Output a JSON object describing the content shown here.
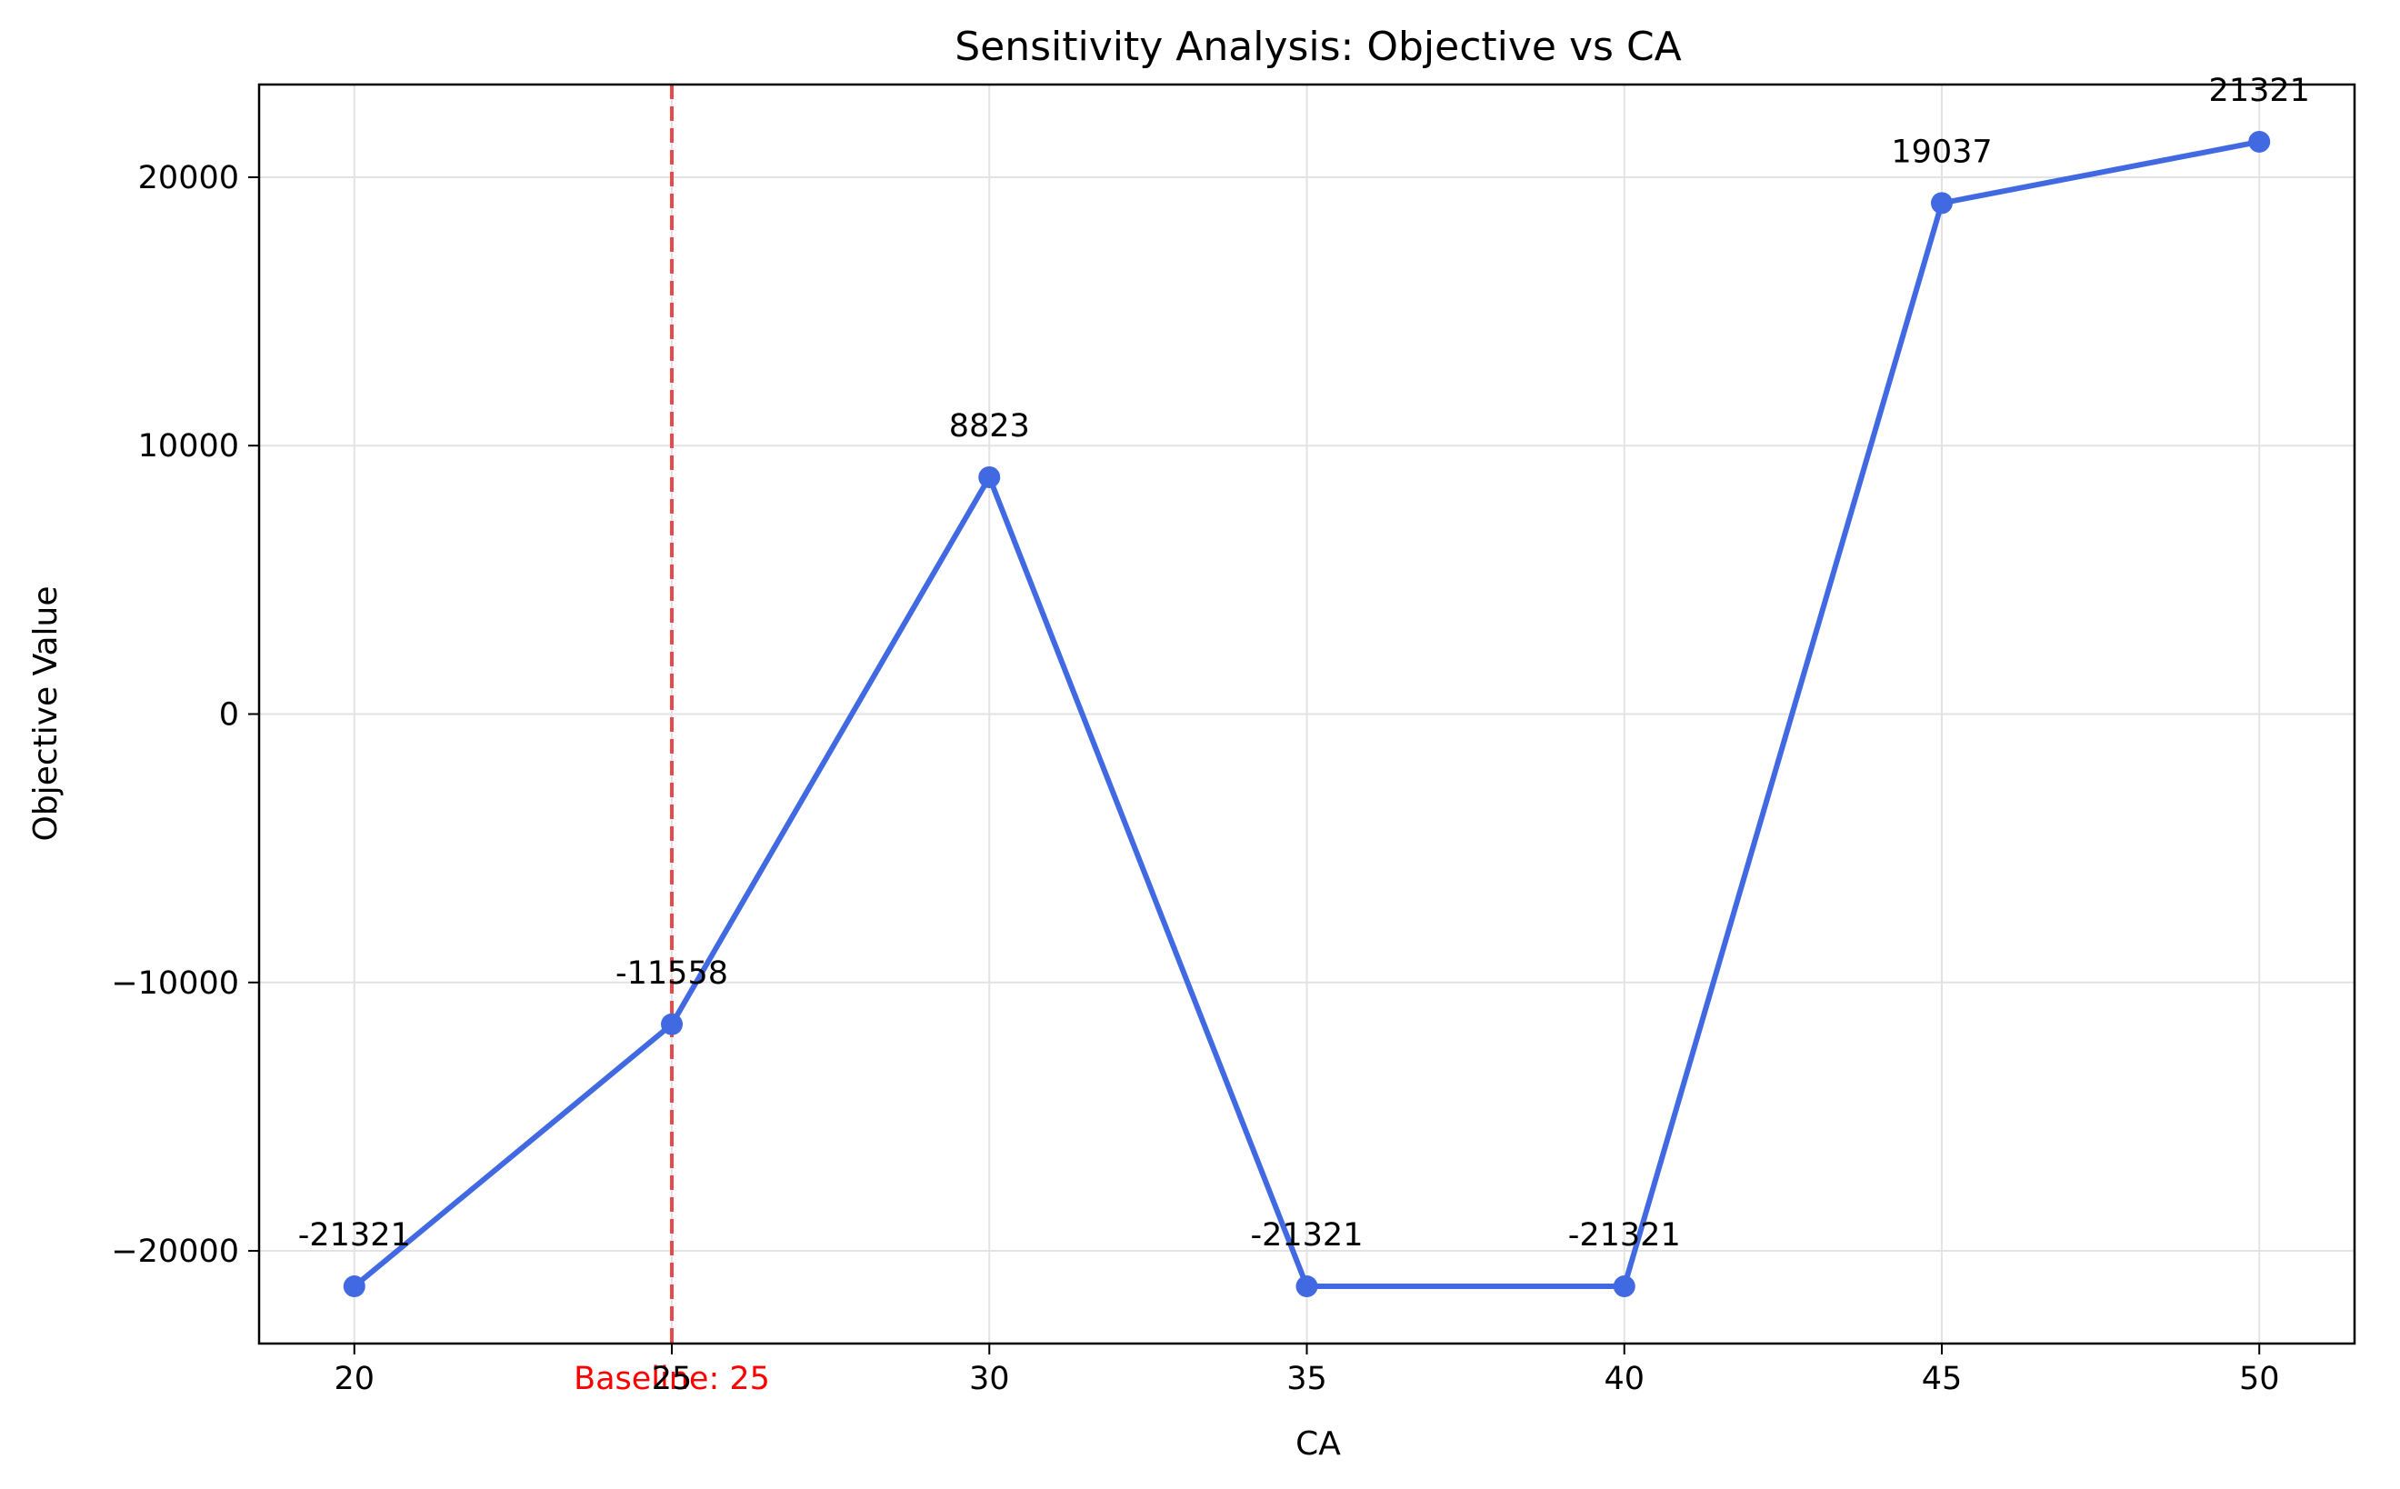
{
  "chart_data": {
    "type": "line",
    "title": "Sensitivity Analysis: Objective vs CA",
    "xlabel": "CA",
    "ylabel": "Objective Value",
    "x": [
      20,
      25,
      30,
      35,
      40,
      45,
      50
    ],
    "series": [
      {
        "values": [
          -21321,
          -11558,
          8823,
          -21321,
          -21321,
          19037,
          21321
        ],
        "color": "#4169e1",
        "marker": "circle"
      }
    ],
    "data_labels": [
      "-21321",
      "-11558",
      "8823",
      "-21321",
      "-21321",
      "19037",
      "21321"
    ],
    "xticks": [
      20,
      25,
      30,
      35,
      40,
      45,
      50
    ],
    "xtick_labels": [
      "20",
      "25",
      "30",
      "35",
      "40",
      "45",
      "50"
    ],
    "yticks": [
      -20000,
      -10000,
      0,
      10000,
      20000
    ],
    "ytick_labels": [
      "−20000",
      "−10000",
      "0",
      "10000",
      "20000"
    ],
    "xlim": [
      18.5,
      51.5
    ],
    "ylim": [
      -23453,
      23453
    ],
    "grid": true,
    "baseline": {
      "x": 25,
      "label": "Baseline: 25",
      "color": "#e84040",
      "style": "dashed"
    }
  }
}
